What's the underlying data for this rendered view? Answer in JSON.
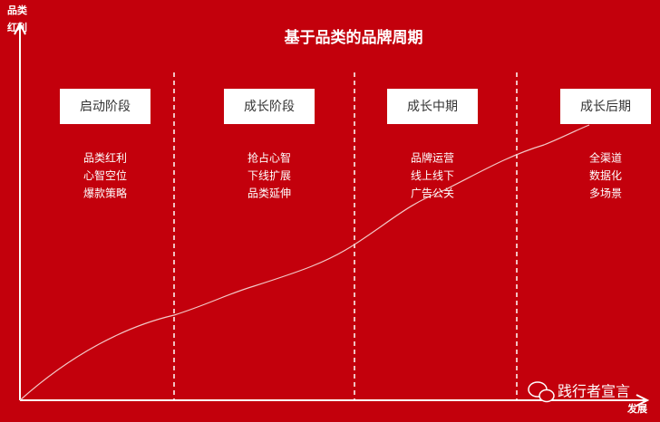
{
  "title": "基于品类的品牌周期",
  "y_axis_label": [
    "品类",
    "红利"
  ],
  "x_axis_label": "发展",
  "stages": [
    {
      "label": "启动阶段",
      "items": [
        "品类红利",
        "心智空位",
        "爆款策略"
      ]
    },
    {
      "label": "成长阶段",
      "items": [
        "抢占心智",
        "下线扩展",
        "品类延伸"
      ]
    },
    {
      "label": "成长中期",
      "items": [
        "品牌运营",
        "线上线下",
        "广告公关"
      ]
    },
    {
      "label": "成长后期",
      "items": [
        "全渠道",
        "数据化",
        "多场景"
      ]
    }
  ],
  "watermark": "践行者宣言"
}
